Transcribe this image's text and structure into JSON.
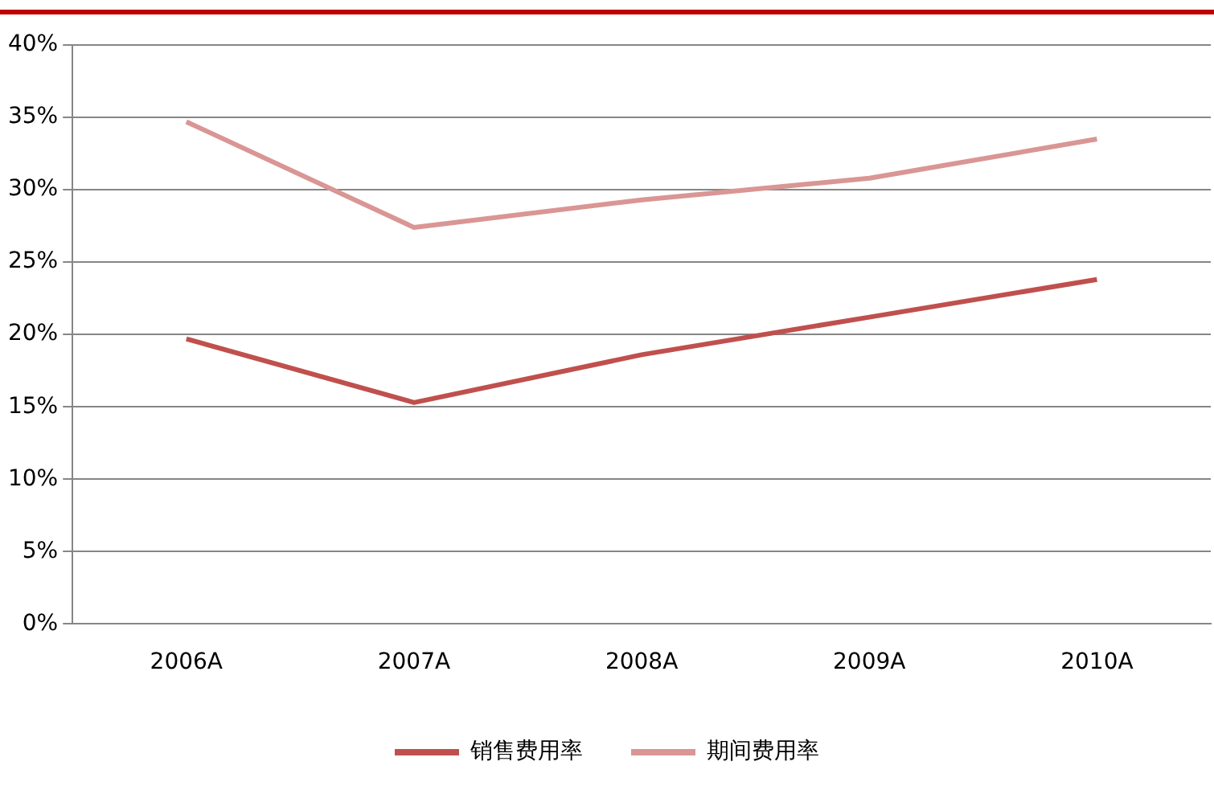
{
  "chart_data": {
    "type": "line",
    "categories": [
      "2006A",
      "2007A",
      "2008A",
      "2009A",
      "2010A"
    ],
    "series": [
      {
        "name": "销售费用率",
        "color": "#c0504d",
        "values": [
          19.7,
          15.3,
          18.6,
          21.2,
          23.8
        ]
      },
      {
        "name": "期间费用率",
        "color": "#d99694",
        "values": [
          34.7,
          27.4,
          29.3,
          30.8,
          33.5
        ]
      }
    ],
    "ylim": [
      0,
      40
    ],
    "yticks": [
      {
        "value": 0,
        "label": "0%"
      },
      {
        "value": 5,
        "label": "5%"
      },
      {
        "value": 10,
        "label": "10%"
      },
      {
        "value": 15,
        "label": "15%"
      },
      {
        "value": 20,
        "label": "20%"
      },
      {
        "value": 25,
        "label": "25%"
      },
      {
        "value": 30,
        "label": "30%"
      },
      {
        "value": 35,
        "label": "35%"
      },
      {
        "value": 40,
        "label": "40%"
      }
    ],
    "grid": "y",
    "legend": "bottom",
    "marker": "none",
    "line_style": "solid"
  }
}
